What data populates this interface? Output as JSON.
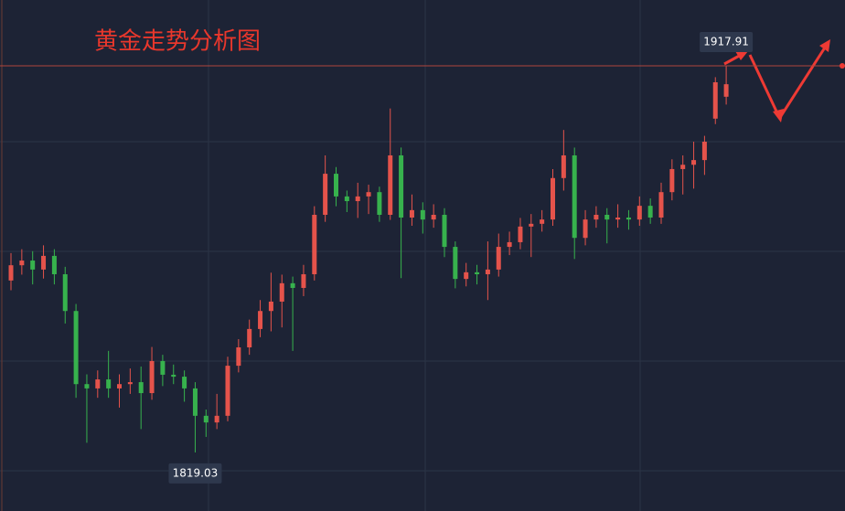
{
  "chart_data": {
    "type": "candlestick",
    "title": "黄金走势分析图",
    "up_color": "#e5534b",
    "down_color": "#37b24d",
    "ylim": [
      1804.05,
      1934.74
    ],
    "open": [
      1863.0,
      1866.9,
      1868.1,
      1865.8,
      1869.3,
      1864.6,
      1855.2,
      1836.5,
      1835.4,
      1837.7,
      1835.4,
      1836.5,
      1837.0,
      1834.2,
      1842.4,
      1838.9,
      1838.4,
      1835.4,
      1828.4,
      1826.7,
      1828.4,
      1841.2,
      1845.9,
      1850.6,
      1855.2,
      1857.6,
      1862.3,
      1861.1,
      1864.6,
      1879.8,
      1890.3,
      1884.5,
      1883.3,
      1884.5,
      1885.6,
      1879.8,
      1895.0,
      1879.1,
      1881.0,
      1878.6,
      1879.8,
      1871.6,
      1863.4,
      1865.1,
      1864.6,
      1865.8,
      1871.6,
      1872.8,
      1876.8,
      1877.5,
      1878.6,
      1889.2,
      1895.0,
      1873.9,
      1878.6,
      1879.8,
      1878.6,
      1879.1,
      1878.6,
      1882.1,
      1879.1,
      1885.6,
      1891.5,
      1892.6,
      1893.8,
      1904.4,
      1910.0
    ],
    "high": [
      1870.0,
      1871.0,
      1870.5,
      1872.0,
      1871.0,
      1866.5,
      1857.0,
      1839.0,
      1840.0,
      1845.0,
      1839.0,
      1840.5,
      1841.0,
      1846.0,
      1844.0,
      1841.5,
      1840.0,
      1837.0,
      1830.0,
      1834.0,
      1843.5,
      1848.0,
      1853.0,
      1858.0,
      1865.0,
      1864.5,
      1864.0,
      1867.0,
      1882.0,
      1895.0,
      1892.0,
      1886.0,
      1888.0,
      1887.5,
      1887.0,
      1907.0,
      1897.0,
      1885.0,
      1883.0,
      1882.5,
      1881.5,
      1873.0,
      1867.5,
      1867.0,
      1873.0,
      1875.0,
      1875.5,
      1879.0,
      1880.0,
      1881.0,
      1891.5,
      1901.5,
      1897.0,
      1881.0,
      1882.0,
      1881.5,
      1882.5,
      1881.0,
      1884.5,
      1884.0,
      1888.0,
      1894.0,
      1895.0,
      1898.5,
      1900.0,
      1915.0,
      1917.91
    ],
    "low": [
      1860.5,
      1864.5,
      1862.0,
      1863.5,
      1862.0,
      1852.0,
      1833.0,
      1821.5,
      1833.0,
      1833.0,
      1830.5,
      1834.0,
      1825.0,
      1832.5,
      1836.0,
      1836.5,
      1832.0,
      1819.03,
      1823.0,
      1825.0,
      1827.0,
      1839.5,
      1844.0,
      1848.5,
      1850.0,
      1851.0,
      1845.0,
      1859.0,
      1863.0,
      1878.0,
      1882.0,
      1880.5,
      1879.0,
      1880.0,
      1878.0,
      1878.5,
      1863.6,
      1877.0,
      1875.0,
      1876.5,
      1869.0,
      1861.0,
      1861.5,
      1862.0,
      1858.0,
      1864.0,
      1869.5,
      1871.0,
      1869.0,
      1875.5,
      1877.0,
      1886.0,
      1868.5,
      1872.0,
      1876.5,
      1872.5,
      1876.5,
      1876.0,
      1877.0,
      1877.5,
      1877.5,
      1883.5,
      1885.0,
      1886.5,
      1890.0,
      1903.0,
      1908.0
    ],
    "close": [
      1866.9,
      1868.1,
      1865.8,
      1869.3,
      1864.6,
      1855.2,
      1836.5,
      1835.4,
      1837.7,
      1835.4,
      1836.5,
      1837.0,
      1834.2,
      1842.4,
      1838.9,
      1838.4,
      1835.4,
      1828.4,
      1826.7,
      1828.4,
      1841.2,
      1845.9,
      1850.6,
      1855.2,
      1857.6,
      1862.3,
      1861.1,
      1864.6,
      1879.8,
      1890.3,
      1884.5,
      1883.3,
      1884.5,
      1885.6,
      1879.8,
      1895.0,
      1879.1,
      1881.0,
      1878.6,
      1879.8,
      1871.6,
      1863.4,
      1865.1,
      1864.6,
      1865.8,
      1871.6,
      1872.8,
      1876.8,
      1877.5,
      1878.6,
      1889.2,
      1895.0,
      1873.9,
      1878.6,
      1879.8,
      1878.6,
      1879.1,
      1878.6,
      1882.1,
      1879.1,
      1885.6,
      1891.5,
      1892.6,
      1893.8,
      1898.5,
      1913.7,
      1913.2
    ]
  }
}
